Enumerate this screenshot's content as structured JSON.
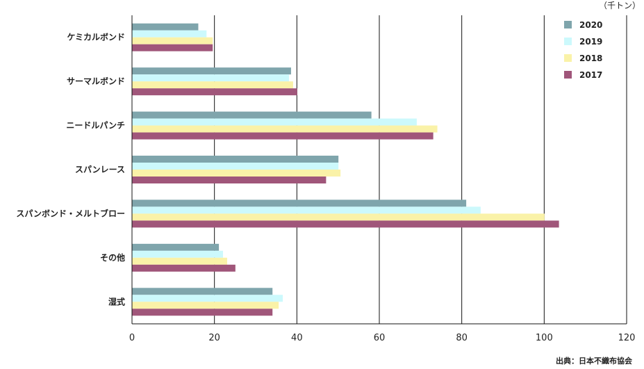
{
  "unit_label": "（千トン）",
  "source": "出典：日本不織布協会",
  "chart_data": {
    "type": "bar",
    "orientation": "horizontal",
    "categories": [
      "ケミカルボンド",
      "サーマルボンド",
      "ニードルパンチ",
      "スパンレース",
      "スパンボンド・メルトブロー",
      "その他",
      "湿式"
    ],
    "series": [
      {
        "name": "2020",
        "color": "#7fa5ac",
        "values": [
          16,
          38.5,
          58,
          50,
          81,
          21,
          34
        ]
      },
      {
        "name": "2019",
        "color": "#ccf9fc",
        "values": [
          18,
          38,
          69,
          50,
          84.5,
          22,
          36.5
        ]
      },
      {
        "name": "2018",
        "color": "#faf2a8",
        "values": [
          19.5,
          39,
          74,
          50.5,
          100,
          23,
          35.5
        ]
      },
      {
        "name": "2017",
        "color": "#a0567a",
        "values": [
          19.5,
          40,
          73,
          47,
          103.5,
          25,
          34
        ]
      }
    ],
    "xlim": [
      0,
      120
    ],
    "xticks": [
      "0",
      "20",
      "40",
      "60",
      "80",
      "100",
      "120"
    ],
    "grid": true,
    "legend_position": "top-right"
  }
}
